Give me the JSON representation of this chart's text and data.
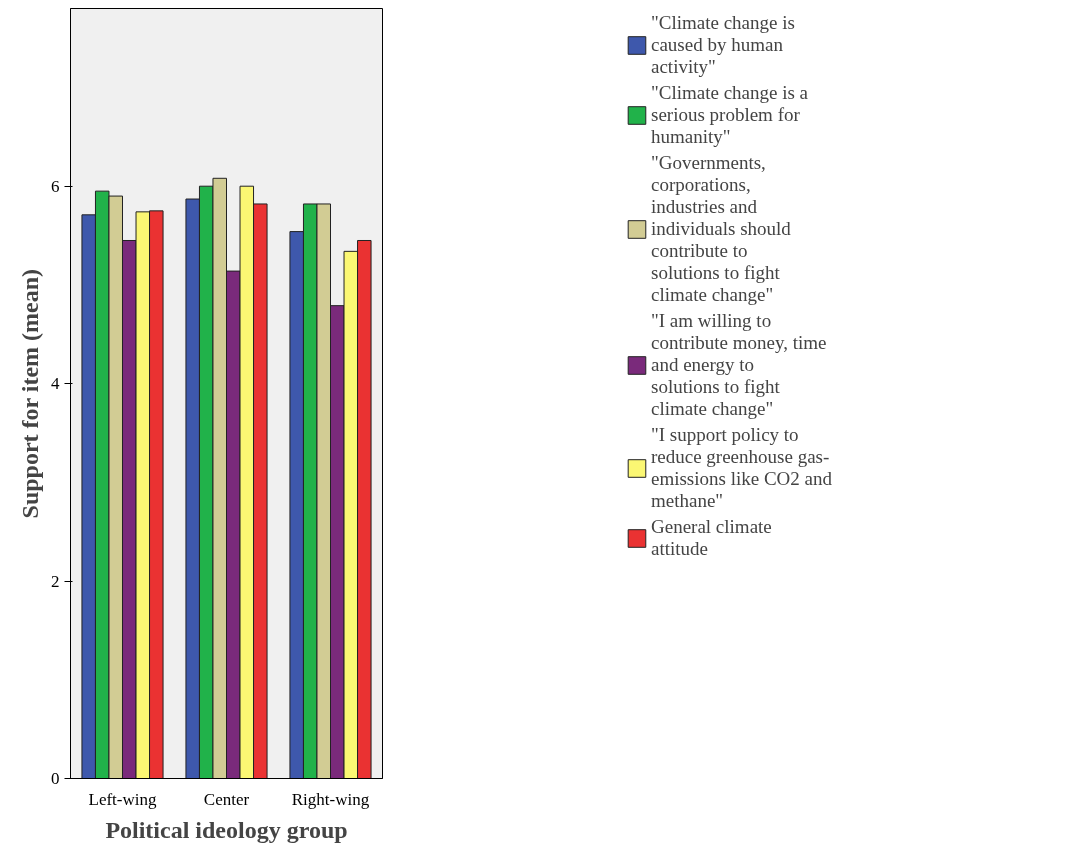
{
  "chart_data": {
    "type": "bar",
    "xlabel": "Political ideology group",
    "ylabel": "Support for item (mean)",
    "categories": [
      "Left-wing",
      "Center",
      "Right-wing"
    ],
    "series": [
      {
        "name": "\"Climate change is caused by human activity\"",
        "color": "#3e58ac",
        "values": [
          5.71,
          5.87,
          5.54
        ]
      },
      {
        "name": "\"Climate change is a serious problem for humanity\"",
        "color": "#21b24a",
        "values": [
          5.95,
          6.0,
          5.82
        ]
      },
      {
        "name": "\"Governments, corporations, industries and individuals should contribute to solutions to fight climate change\"",
        "color": "#d2cc94",
        "values": [
          5.9,
          6.08,
          5.82
        ]
      },
      {
        "name": "\"I am willing to contribute money, time and energy to solutions to fight climate change\"",
        "color": "#7a2a7b",
        "values": [
          5.45,
          5.14,
          4.79
        ]
      },
      {
        "name": "\"I support policy to reduce greenhouse gas-emissions like CO2 and methane\"",
        "color": "#fbf773",
        "values": [
          5.74,
          6.0,
          5.34
        ]
      },
      {
        "name": "General climate attitude",
        "color": "#ea3232",
        "values": [
          5.75,
          5.82,
          5.45
        ]
      }
    ],
    "ylim": [
      0,
      7.8
    ],
    "yticks": [
      0,
      2,
      4,
      6
    ],
    "grid": false,
    "legend": "right"
  }
}
